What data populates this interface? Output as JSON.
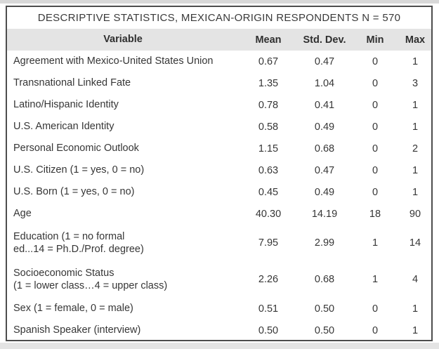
{
  "table": {
    "title": "DESCRIPTIVE STATISTICS, MEXICAN-ORIGIN RESPONDENTS N = 570",
    "border_color": "#4d4d4d",
    "header_bg": "#e4e4e4",
    "text_color": "#363636",
    "columns": [
      "Variable",
      "Mean",
      "Std. Dev.",
      "Min",
      "Max"
    ],
    "rows": [
      {
        "variable": "Agreement with Mexico-United States Union",
        "mean": "0.67",
        "std_dev": "0.47",
        "min": "0",
        "max": "1"
      },
      {
        "variable": "Transnational Linked Fate",
        "mean": "1.35",
        "std_dev": "1.04",
        "min": "0",
        "max": "3"
      },
      {
        "variable": "Latino/Hispanic Identity",
        "mean": "0.78",
        "std_dev": "0.41",
        "min": "0",
        "max": "1"
      },
      {
        "variable": "U.S. American Identity",
        "mean": "0.58",
        "std_dev": "0.49",
        "min": "0",
        "max": "1"
      },
      {
        "variable": "Personal Economic Outlook",
        "mean": "1.15",
        "std_dev": "0.68",
        "min": "0",
        "max": "2"
      },
      {
        "variable": "U.S. Citizen (1 = yes, 0 = no)",
        "mean": "0.63",
        "std_dev": "0.47",
        "min": "0",
        "max": "1"
      },
      {
        "variable": "U.S. Born (1 = yes, 0 = no)",
        "mean": "0.45",
        "std_dev": "0.49",
        "min": "0",
        "max": "1"
      },
      {
        "variable": "Age",
        "mean": "40.30",
        "std_dev": "14.19",
        "min": "18",
        "max": "90"
      },
      {
        "variable": "Education (1 = no formal\ned...14 = Ph.D./Prof. degree)",
        "two_line": true,
        "mean": "7.95",
        "std_dev": "2.99",
        "min": "1",
        "max": "14"
      },
      {
        "variable": "Socioeconomic Status\n(1 = lower class…4 = upper class)",
        "two_line": true,
        "mean": "2.26",
        "std_dev": "0.68",
        "min": "1",
        "max": "4"
      },
      {
        "variable": "Sex (1 = female, 0 = male)",
        "mean": "0.51",
        "std_dev": "0.50",
        "min": "0",
        "max": "1"
      },
      {
        "variable": "Spanish Speaker (interview)",
        "mean": "0.50",
        "std_dev": "0.50",
        "min": "0",
        "max": "1"
      }
    ]
  }
}
